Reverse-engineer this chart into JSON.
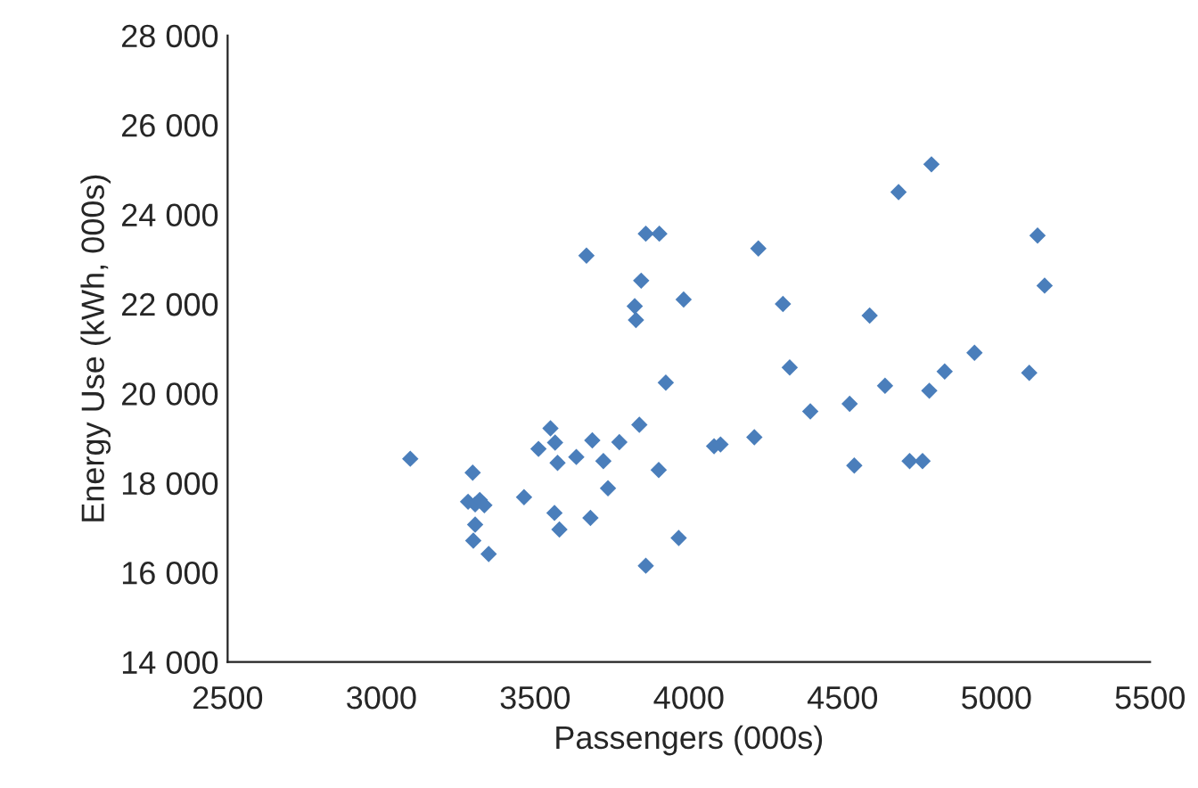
{
  "chart_data": {
    "type": "scatter",
    "xlabel": "Passengers (000s)",
    "ylabel": "Energy Use (kWh, 000s)",
    "x": [
      3094,
      3297,
      3282,
      3305,
      3320,
      3335,
      3305,
      3299,
      3349,
      3464,
      3550,
      3511,
      3565,
      3573,
      3563,
      3579,
      3634,
      3680,
      3686,
      3722,
      3737,
      3774,
      3839,
      3902,
      3967,
      3860,
      3925,
      3828,
      3824,
      3845,
      3983,
      3667,
      3860,
      3904,
      4789,
      4682,
      4226,
      5134,
      5157,
      4306,
      4588,
      4328,
      4929,
      5107,
      4832,
      4782,
      4638,
      4523,
      4395,
      4213,
      4082,
      4103,
      4538,
      4718,
      4760
    ],
    "values": [
      18540,
      18230,
      17580,
      17520,
      17620,
      17500,
      17070,
      16710,
      16410,
      17680,
      19220,
      18760,
      18900,
      18450,
      17330,
      16960,
      18580,
      17220,
      18950,
      18490,
      17880,
      18910,
      19300,
      18290,
      16770,
      16150,
      20240,
      21640,
      21950,
      22520,
      22100,
      23080,
      23570,
      23570,
      25120,
      24500,
      23240,
      23530,
      22410,
      22000,
      21740,
      20580,
      20910,
      20460,
      20490,
      20060,
      20170,
      19770,
      19600,
      19020,
      18820,
      18860,
      18390,
      18490,
      18490
    ],
    "color": "#4a7ebb",
    "marker": "diamond",
    "xlim": [
      2500,
      5500
    ],
    "xticks": [
      2500,
      3000,
      3500,
      4000,
      4500,
      5000,
      5500
    ],
    "ylim": [
      14000,
      28000
    ],
    "yticks": [
      {
        "value": 14000,
        "label": "14 000"
      },
      {
        "value": 16000,
        "label": "16 000"
      },
      {
        "value": 18000,
        "label": "18 000"
      },
      {
        "value": 20000,
        "label": "20 000"
      },
      {
        "value": 22000,
        "label": "22 000"
      },
      {
        "value": 24000,
        "label": "24 000"
      },
      {
        "value": 26000,
        "label": "26 000"
      },
      {
        "value": 28000,
        "label": "28 000"
      }
    ],
    "grid": false,
    "legend": false
  }
}
